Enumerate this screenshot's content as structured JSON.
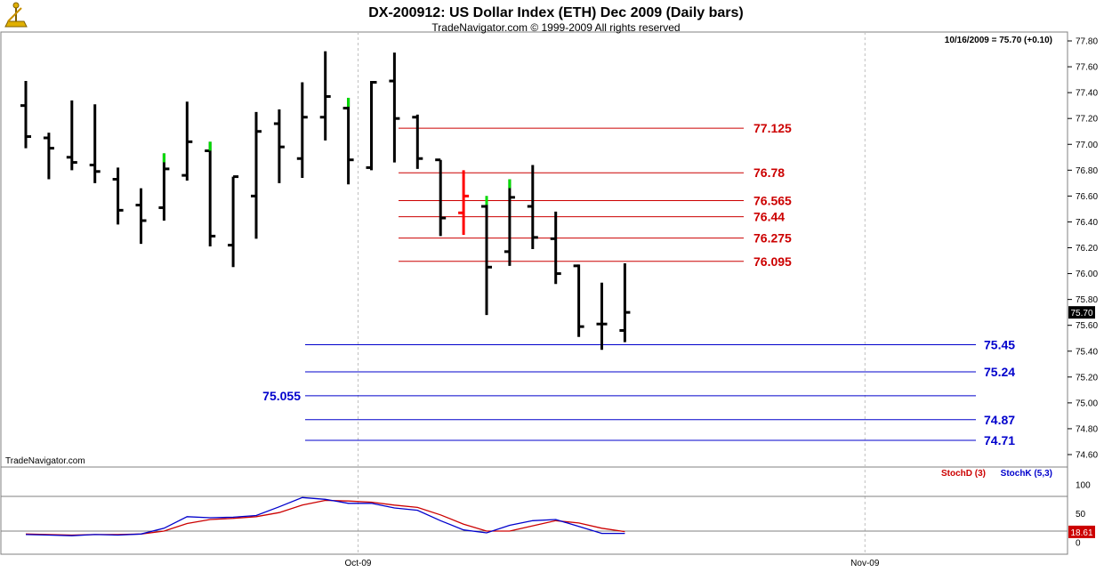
{
  "header": {
    "title": "DX-200912:  US Dollar Index (ETH) Dec 2009  (Daily bars)",
    "subtitle": "TradeNavigator.com © 1999-2009 All rights reserved",
    "readout": "10/16/2009 = 75.70 (+0.10)",
    "watermark": "TradeNavigator.com",
    "logo": "sextant-icon"
  },
  "colors": {
    "up": "#00dd00",
    "down": "#000000",
    "highlight": "#ff0000",
    "resistance": "#cc0000",
    "support": "#0000cc",
    "stochD": "#cc0000",
    "stochK": "#0000cc",
    "last_price_box": "#000000",
    "stoch_box": "#cc0000"
  },
  "chart_data": {
    "type": "ohlc-bar",
    "price_axis": {
      "min": 74.6,
      "max": 77.8,
      "ticks": [
        "77.80",
        "77.60",
        "77.40",
        "77.20",
        "77.00",
        "76.80",
        "76.60",
        "76.40",
        "76.20",
        "76.00",
        "75.80",
        "75.60",
        "75.40",
        "75.20",
        "75.00",
        "74.80",
        "74.60"
      ],
      "last_price_label": "75.70",
      "last_price": 75.7
    },
    "date_axis": {
      "labels": [
        {
          "text": "Oct-09",
          "bar_index": 15
        },
        {
          "text": "Nov-09",
          "bar_index": 37
        }
      ]
    },
    "bars": [
      {
        "o": 77.3,
        "h": 77.49,
        "l": 76.97,
        "c": 77.06
      },
      {
        "o": 77.05,
        "h": 77.09,
        "l": 76.73,
        "c": 76.97
      },
      {
        "o": 76.9,
        "h": 77.34,
        "l": 76.8,
        "c": 76.86
      },
      {
        "o": 76.84,
        "h": 77.31,
        "l": 76.7,
        "c": 76.79
      },
      {
        "o": 76.73,
        "h": 76.82,
        "l": 76.38,
        "c": 76.49
      },
      {
        "o": 76.53,
        "h": 76.66,
        "l": 76.23,
        "c": 76.41
      },
      {
        "o": 76.51,
        "h": 76.93,
        "l": 76.41,
        "c": 76.81,
        "up": true
      },
      {
        "o": 76.76,
        "h": 77.33,
        "l": 76.72,
        "c": 77.02
      },
      {
        "o": 76.95,
        "h": 77.02,
        "l": 76.21,
        "c": 76.29,
        "up": true
      },
      {
        "o": 76.22,
        "h": 76.75,
        "l": 76.05,
        "c": 76.75
      },
      {
        "o": 76.6,
        "h": 77.25,
        "l": 76.27,
        "c": 77.1
      },
      {
        "o": 77.16,
        "h": 77.27,
        "l": 76.7,
        "c": 76.98
      },
      {
        "o": 76.89,
        "h": 77.48,
        "l": 76.74,
        "c": 77.21
      },
      {
        "o": 77.21,
        "h": 77.72,
        "l": 77.03,
        "c": 77.37
      },
      {
        "o": 77.28,
        "h": 77.36,
        "l": 76.69,
        "c": 76.88,
        "up": true
      },
      {
        "o": 76.82,
        "h": 77.49,
        "l": 76.8,
        "c": 77.48
      },
      {
        "o": 77.49,
        "h": 77.71,
        "l": 76.86,
        "c": 77.2
      },
      {
        "o": 77.21,
        "h": 77.23,
        "l": 76.81,
        "c": 76.89
      },
      {
        "o": 76.88,
        "h": 76.88,
        "l": 76.29,
        "c": 76.43
      },
      {
        "o": 76.47,
        "h": 76.8,
        "l": 76.3,
        "c": 76.6,
        "highlight": true
      },
      {
        "o": 76.52,
        "h": 76.6,
        "l": 75.68,
        "c": 76.05,
        "up": true
      },
      {
        "o": 76.17,
        "h": 76.73,
        "l": 76.06,
        "c": 76.59,
        "up": true
      },
      {
        "o": 76.52,
        "h": 76.84,
        "l": 76.19,
        "c": 76.28
      },
      {
        "o": 76.27,
        "h": 76.48,
        "l": 75.92,
        "c": 76.0
      },
      {
        "o": 76.06,
        "h": 76.07,
        "l": 75.51,
        "c": 75.59
      },
      {
        "o": 75.61,
        "h": 75.93,
        "l": 75.41,
        "c": 75.61
      },
      {
        "o": 75.56,
        "h": 76.08,
        "l": 75.47,
        "c": 75.7
      }
    ],
    "resistance_levels": [
      {
        "value": 77.125,
        "label": "77.125"
      },
      {
        "value": 76.78,
        "label": "76.78"
      },
      {
        "value": 76.565,
        "label": "76.565"
      },
      {
        "value": 76.44,
        "label": "76.44"
      },
      {
        "value": 76.275,
        "label": "76.275"
      },
      {
        "value": 76.095,
        "label": "76.095"
      }
    ],
    "support_levels": [
      {
        "value": 75.45,
        "label": "75.45",
        "label_side": "right"
      },
      {
        "value": 75.24,
        "label": "75.24",
        "label_side": "right"
      },
      {
        "value": 75.055,
        "label": "75.055",
        "label_side": "left"
      },
      {
        "value": 74.87,
        "label": "74.87",
        "label_side": "right"
      },
      {
        "value": 74.71,
        "label": "74.71",
        "label_side": "right"
      }
    ],
    "stochastic": {
      "legend_d": "StochD (3)",
      "legend_k": "StochK (5,3)",
      "axis": {
        "min": 0,
        "max": 100,
        "ticks": [
          "100",
          "50",
          "0"
        ]
      },
      "levels": [
        80,
        20
      ],
      "last_value_label": "18.61",
      "last_value": 18.61,
      "k": [
        14,
        13,
        12,
        14,
        13,
        15,
        25,
        45,
        43,
        44,
        47,
        62,
        78,
        75,
        68,
        68,
        60,
        56,
        38,
        22,
        17,
        30,
        38,
        40,
        28,
        16,
        16
      ],
      "d": [
        15,
        14,
        13,
        14,
        14,
        15,
        20,
        33,
        40,
        42,
        45,
        52,
        65,
        73,
        72,
        70,
        65,
        61,
        48,
        32,
        20,
        20,
        29,
        38,
        34,
        25,
        19
      ]
    }
  }
}
